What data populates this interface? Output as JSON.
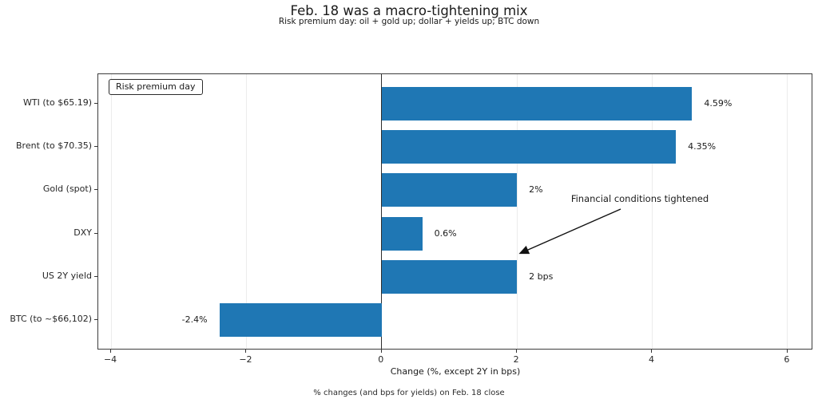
{
  "title": "Feb. 18 was a macro-tightening mix",
  "subtitle": "Risk premium day: oil + gold up; dollar + yields up; BTC down",
  "footer": "% changes (and bps for yields) on Feb. 18 close",
  "legend_label": "Risk premium day",
  "annotation_label": "Financial conditions tightened",
  "chart_data": {
    "type": "bar",
    "orientation": "horizontal",
    "title": "Feb. 18 was a macro-tightening mix",
    "subtitle": "Risk premium day: oil + gold up; dollar + yields up; BTC down",
    "categories": [
      "WTI (to $65.19)",
      "Brent (to $70.35)",
      "Gold (spot)",
      "DXY",
      "US 2Y yield",
      "BTC (to ~$66,102)"
    ],
    "values": [
      4.59,
      4.35,
      2.0,
      0.6,
      2.0,
      -2.4
    ],
    "bar_labels": [
      "4.59%",
      "4.35%",
      "2%",
      "0.6%",
      "2 bps",
      "-2.4%"
    ],
    "xlabel": "Change (%, except 2Y in bps)",
    "xticks": [
      -4,
      -2,
      0,
      2,
      4,
      6
    ],
    "xtick_labels": [
      "−4",
      "−2",
      "0",
      "2",
      "4",
      "6"
    ],
    "xlim": [
      -4.19,
      6.38
    ],
    "grid": true,
    "zero_line": true,
    "legend_position": "upper left",
    "legend_entries": [
      "Risk premium day"
    ],
    "annotation": {
      "text": "Financial conditions tightened",
      "points_to": "US 2Y yield bar tip"
    },
    "bar_color": "#1f77b4",
    "caption": "% changes (and bps for yields) on Feb. 18 close"
  }
}
